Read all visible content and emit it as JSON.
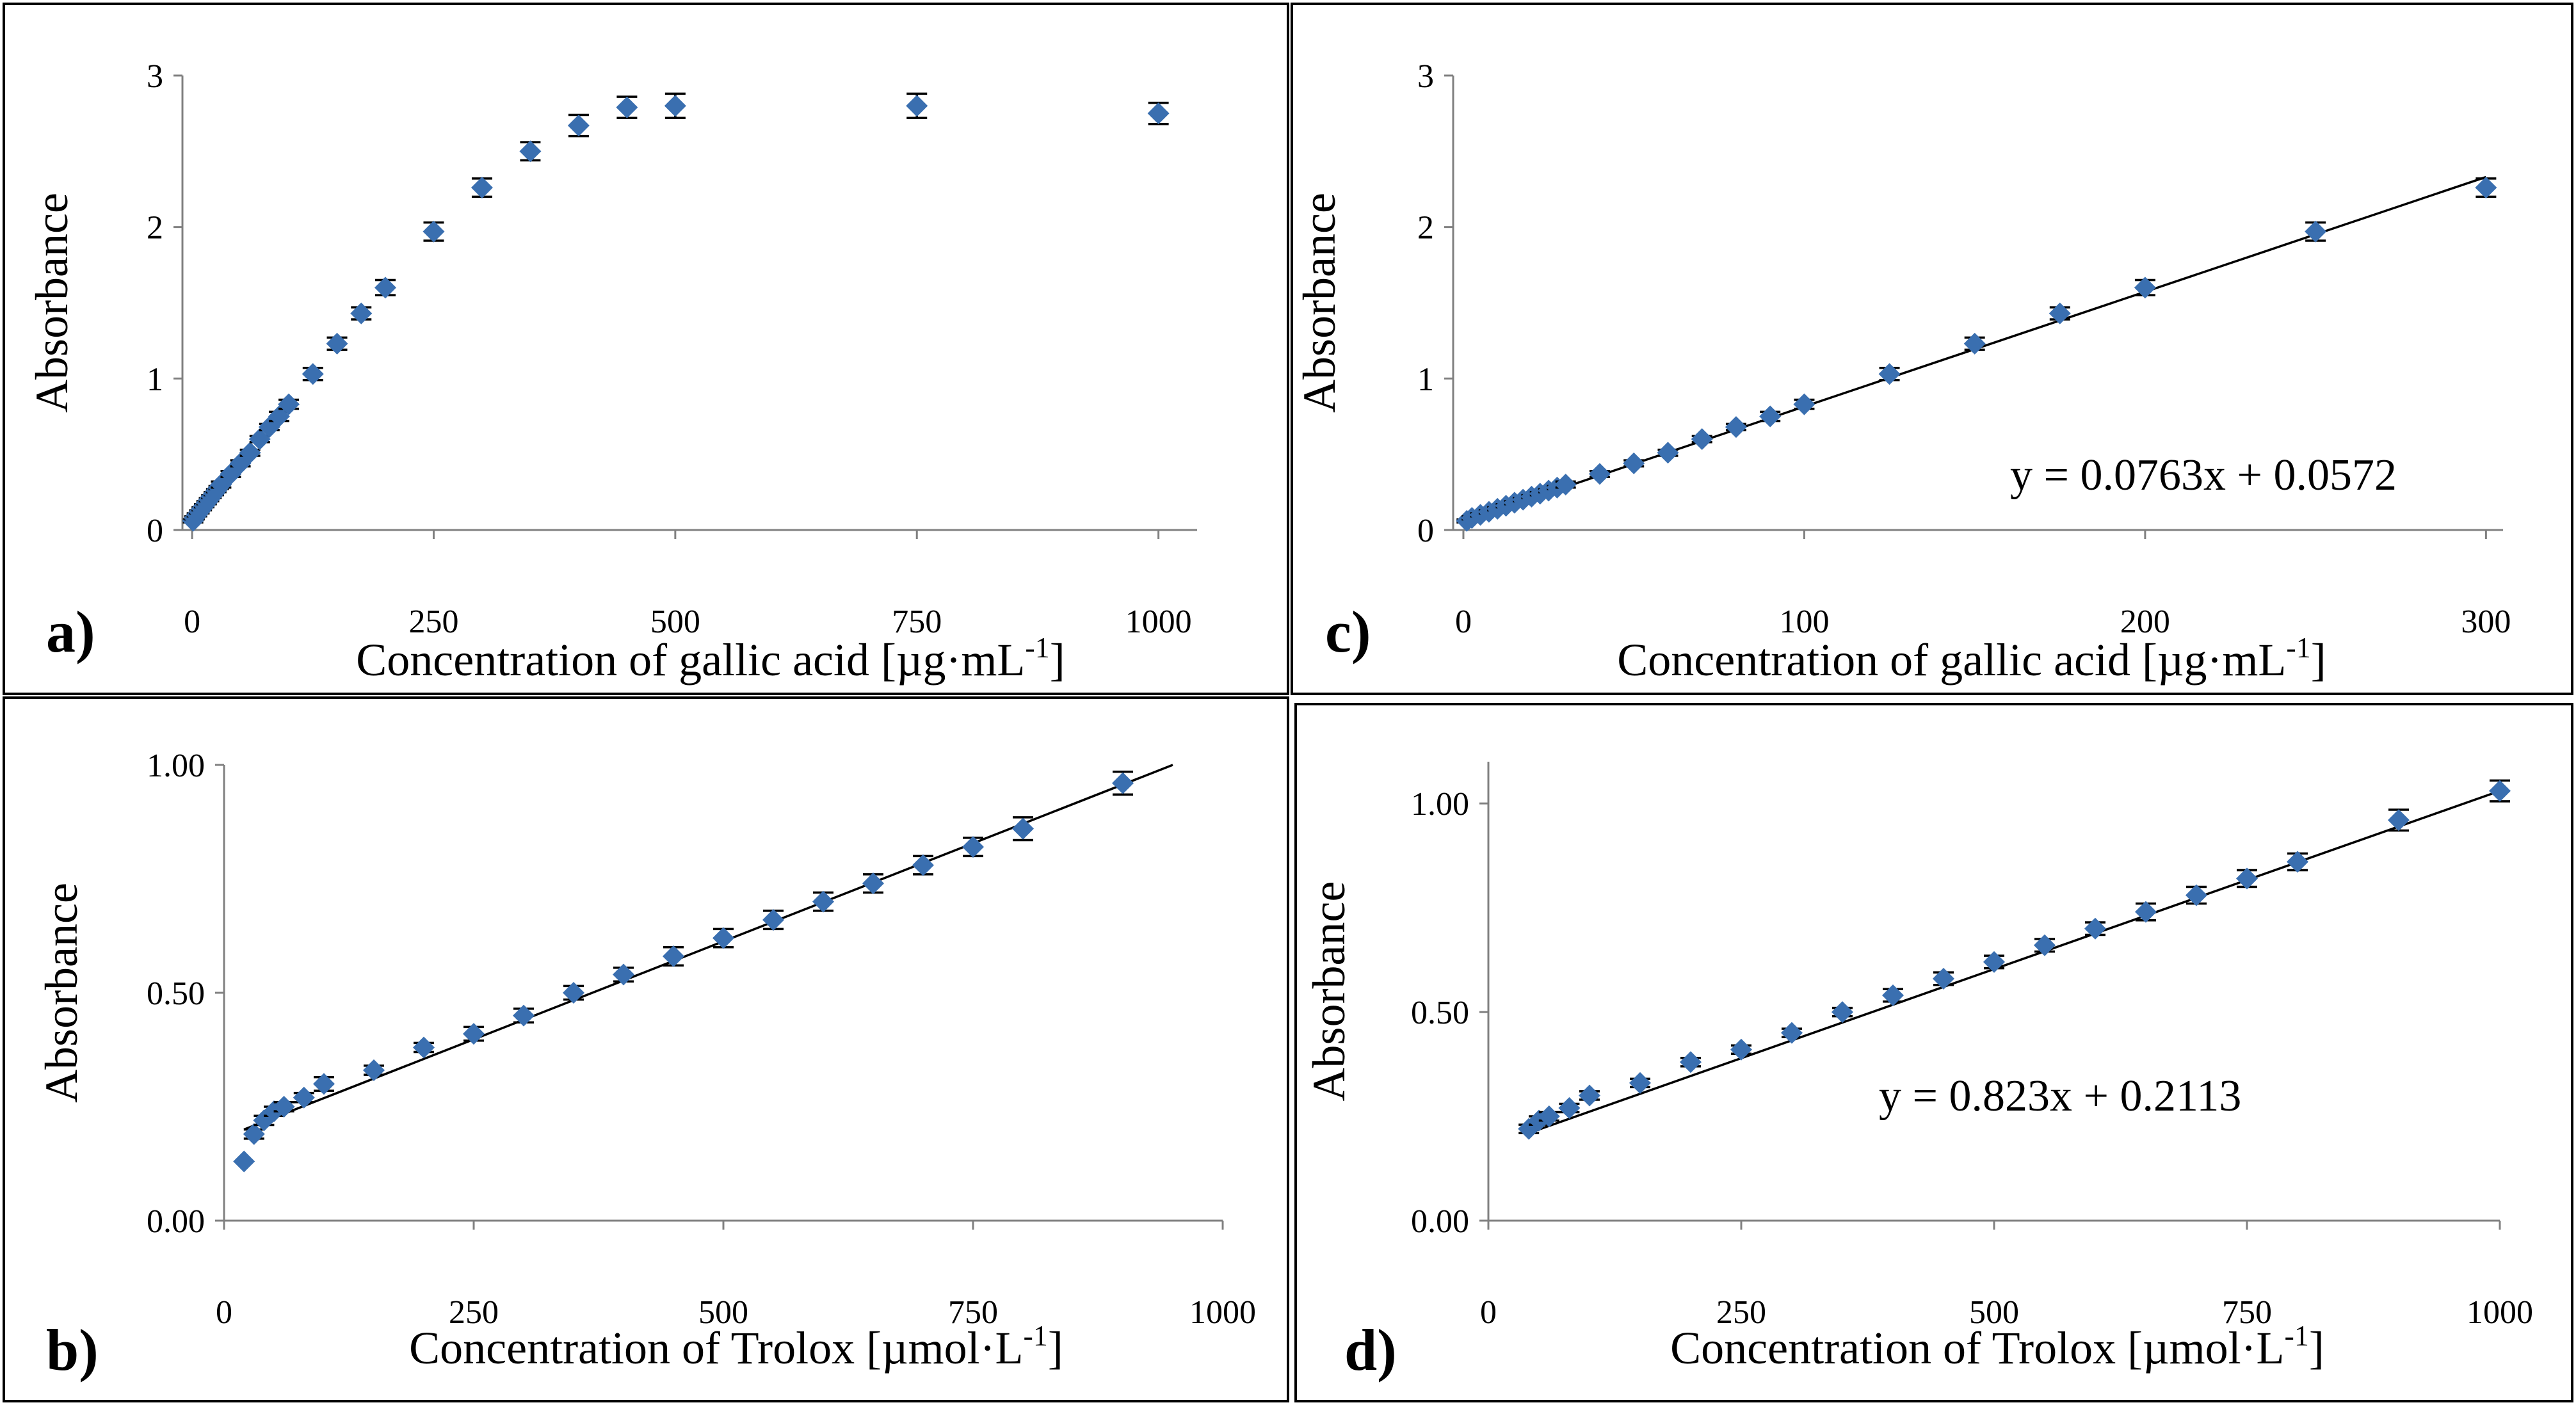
{
  "chart_data": [
    {
      "panel": "a)",
      "type": "scatter",
      "xlabel": "Concentration of  gallic acid [µg·mL",
      "xlabel_sup": "-1",
      "xlabel_end": "]",
      "ylabel": "Absorbance",
      "xlim": [
        -10,
        1040
      ],
      "ylim": [
        0,
        3
      ],
      "xticks": [
        0,
        250,
        500,
        750,
        1000
      ],
      "xtick_labels": [
        "0",
        "250",
        "500",
        "750",
        "1000"
      ],
      "yticks": [
        0,
        1,
        2,
        3
      ],
      "ytick_labels": [
        "0",
        "1",
        "2",
        "3"
      ],
      "x": [
        1,
        2.5,
        5,
        7.5,
        10,
        12.5,
        15,
        17.5,
        20,
        22.5,
        25,
        27.5,
        30,
        40,
        50,
        60,
        70,
        80,
        90,
        100,
        125,
        150,
        175,
        200,
        250,
        300,
        350,
        400,
        450,
        500,
        750,
        1000
      ],
      "y": [
        0.06,
        0.08,
        0.1,
        0.12,
        0.14,
        0.16,
        0.18,
        0.2,
        0.22,
        0.24,
        0.26,
        0.28,
        0.3,
        0.37,
        0.44,
        0.51,
        0.6,
        0.68,
        0.75,
        0.83,
        1.03,
        1.23,
        1.43,
        1.6,
        1.97,
        2.26,
        2.5,
        2.67,
        2.79,
        2.8,
        2.8,
        2.75
      ],
      "err": [
        0.01,
        0.01,
        0.01,
        0.01,
        0.01,
        0.01,
        0.01,
        0.01,
        0.01,
        0.01,
        0.01,
        0.01,
        0.02,
        0.02,
        0.02,
        0.02,
        0.02,
        0.02,
        0.03,
        0.03,
        0.04,
        0.04,
        0.04,
        0.05,
        0.06,
        0.06,
        0.06,
        0.07,
        0.07,
        0.08,
        0.08,
        0.07
      ],
      "fit": null,
      "equation": ""
    },
    {
      "panel": "c)",
      "type": "scatter",
      "xlabel": "Concentration of  gallic acid [µg·mL",
      "xlabel_sup": "-1",
      "xlabel_end": "]",
      "ylabel": "Absorbance",
      "xlim": [
        -3,
        305
      ],
      "ylim": [
        0,
        3
      ],
      "xticks": [
        0,
        100,
        200,
        300
      ],
      "xtick_labels": [
        "0",
        "100",
        "200",
        "300"
      ],
      "yticks": [
        0,
        1,
        2,
        3
      ],
      "ytick_labels": [
        "0",
        "1",
        "2",
        "3"
      ],
      "x": [
        1,
        2.5,
        5,
        7.5,
        10,
        12.5,
        15,
        17.5,
        20,
        22.5,
        25,
        27.5,
        30,
        40,
        50,
        60,
        70,
        80,
        90,
        100,
        125,
        150,
        175,
        200,
        250,
        300
      ],
      "y": [
        0.06,
        0.08,
        0.1,
        0.12,
        0.14,
        0.16,
        0.18,
        0.2,
        0.22,
        0.24,
        0.26,
        0.28,
        0.3,
        0.37,
        0.44,
        0.51,
        0.6,
        0.68,
        0.75,
        0.83,
        1.03,
        1.23,
        1.43,
        1.6,
        1.97,
        2.26
      ],
      "err": [
        0.01,
        0.01,
        0.01,
        0.01,
        0.01,
        0.01,
        0.01,
        0.01,
        0.01,
        0.01,
        0.01,
        0.01,
        0.02,
        0.02,
        0.02,
        0.02,
        0.02,
        0.02,
        0.03,
        0.03,
        0.04,
        0.04,
        0.04,
        0.05,
        0.06,
        0.06
      ],
      "fit": {
        "x_range": [
          0,
          300
        ],
        "y_range": [
          0.0572,
          2.33
        ]
      },
      "equation": "y = 0.0763x + 0.0572"
    },
    {
      "panel": "b)",
      "type": "scatter",
      "xlabel": "Concentration of  Trolox  [µmol·L",
      "xlabel_sup": "-1",
      "xlabel_end": "]",
      "ylabel": "Absorbance",
      "xlim": [
        0,
        1000
      ],
      "ylim": [
        0,
        1
      ],
      "xticks": [
        0,
        250,
        500,
        750,
        1000
      ],
      "xtick_labels": [
        "0",
        "250",
        "500",
        "750",
        "1000"
      ],
      "yticks": [
        0,
        0.5,
        1.0
      ],
      "ytick_labels": [
        "0.00",
        "0.50",
        "1.00"
      ],
      "x": [
        20,
        30,
        40,
        50,
        60,
        80,
        100,
        150,
        200,
        250,
        300,
        350,
        400,
        450,
        500,
        550,
        600,
        650,
        700,
        750,
        800,
        900
      ],
      "y": [
        0.13,
        0.19,
        0.22,
        0.24,
        0.25,
        0.27,
        0.3,
        0.33,
        0.38,
        0.41,
        0.45,
        0.5,
        0.54,
        0.58,
        0.62,
        0.66,
        0.7,
        0.74,
        0.78,
        0.82,
        0.86,
        0.96
      ],
      "err": [
        0.0,
        0.01,
        0.01,
        0.01,
        0.01,
        0.01,
        0.015,
        0.01,
        0.01,
        0.015,
        0.015,
        0.015,
        0.015,
        0.02,
        0.02,
        0.02,
        0.02,
        0.02,
        0.02,
        0.02,
        0.025,
        0.025
      ],
      "fit": {
        "x_range": [
          20,
          950
        ],
        "y_range": [
          0.2,
          1.0
        ]
      },
      "equation": ""
    },
    {
      "panel": "d)",
      "type": "scatter",
      "xlabel": "Concentration of  Trolox  [µmol·L",
      "xlabel_sup": "-1",
      "xlabel_end": "]",
      "ylabel": "Absorbance",
      "xlim": [
        0,
        1000
      ],
      "ylim": [
        0,
        1.1
      ],
      "xticks": [
        0,
        250,
        500,
        750,
        1000
      ],
      "xtick_labels": [
        "0",
        "250",
        "500",
        "750",
        "1000"
      ],
      "yticks": [
        0,
        0.5,
        1.0
      ],
      "ytick_labels": [
        "0.00",
        "0.50",
        "1.00"
      ],
      "x": [
        40,
        50,
        60,
        80,
        100,
        150,
        200,
        250,
        300,
        350,
        400,
        450,
        500,
        550,
        600,
        650,
        700,
        750,
        800,
        900,
        1000
      ],
      "y": [
        0.22,
        0.24,
        0.25,
        0.27,
        0.3,
        0.33,
        0.38,
        0.41,
        0.45,
        0.5,
        0.54,
        0.58,
        0.62,
        0.66,
        0.7,
        0.74,
        0.78,
        0.82,
        0.86,
        0.96,
        1.03
      ],
      "err": [
        0.01,
        0.01,
        0.01,
        0.01,
        0.01,
        0.01,
        0.01,
        0.01,
        0.01,
        0.01,
        0.015,
        0.015,
        0.015,
        0.015,
        0.015,
        0.02,
        0.02,
        0.02,
        0.02,
        0.025,
        0.025
      ],
      "fit": {
        "x_range": [
          40,
          1000
        ],
        "y_range": [
          0.21,
          1.03
        ]
      },
      "equation": "y = 0.823x + 0.2113"
    }
  ]
}
